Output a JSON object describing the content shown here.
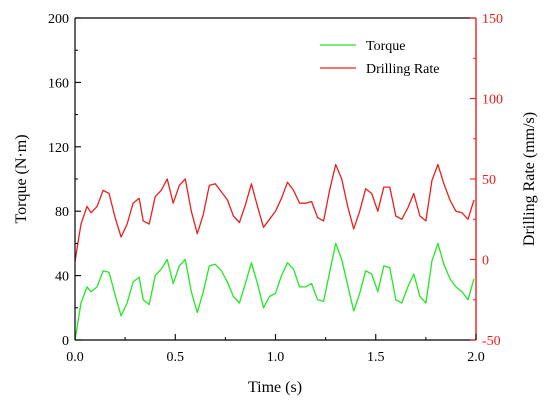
{
  "chart_data": {
    "type": "line",
    "xlabel": "Time (s)",
    "ylabel": "Torque (N·m)",
    "y2label": "Drilling Rate (mm/s)",
    "xlim": [
      0,
      2.0
    ],
    "ylim": [
      0,
      200
    ],
    "y2lim": [
      -50,
      150
    ],
    "xticks": [
      "0.0",
      "0.5",
      "1.0",
      "1.5",
      "2.0"
    ],
    "yticks": [
      "0",
      "40",
      "80",
      "120",
      "160",
      "200"
    ],
    "y2ticks": [
      "-50",
      "0",
      "50",
      "100",
      "150"
    ],
    "legend_position": "top-right",
    "grid": false,
    "colors": {
      "torque": "#22e822",
      "rate": "#e8201d",
      "right_axis": "#e8201d"
    },
    "series": [
      {
        "name": "Torque",
        "axis": "left",
        "color": "#22e822",
        "x": [
          0.0,
          0.03,
          0.06,
          0.08,
          0.11,
          0.14,
          0.17,
          0.2,
          0.23,
          0.26,
          0.29,
          0.32,
          0.34,
          0.37,
          0.4,
          0.43,
          0.46,
          0.49,
          0.52,
          0.55,
          0.58,
          0.61,
          0.64,
          0.67,
          0.7,
          0.73,
          0.76,
          0.79,
          0.82,
          0.85,
          0.88,
          0.91,
          0.94,
          0.97,
          1.0,
          1.03,
          1.06,
          1.09,
          1.12,
          1.15,
          1.18,
          1.21,
          1.24,
          1.27,
          1.3,
          1.33,
          1.36,
          1.39,
          1.42,
          1.45,
          1.48,
          1.51,
          1.54,
          1.57,
          1.6,
          1.63,
          1.66,
          1.69,
          1.72,
          1.75,
          1.78,
          1.81,
          1.84,
          1.87,
          1.9,
          1.93,
          1.96,
          1.99
        ],
        "values": [
          0,
          23,
          33,
          30,
          33,
          43,
          42,
          28,
          15,
          23,
          36,
          39,
          25,
          22,
          40,
          44,
          50,
          35,
          46,
          50,
          30,
          17,
          30,
          46,
          47,
          43,
          36,
          27,
          23,
          35,
          48,
          35,
          20,
          27,
          29,
          40,
          48,
          44,
          33,
          33,
          35,
          25,
          24,
          42,
          60,
          50,
          34,
          18,
          29,
          43,
          41,
          30,
          46,
          45,
          25,
          23,
          33,
          41,
          27,
          23,
          49,
          60,
          47,
          38,
          33,
          30,
          25,
          38
        ]
      },
      {
        "name": "Drilling Rate",
        "axis": "right",
        "color": "#e8201d",
        "x": [
          0.0,
          0.03,
          0.06,
          0.08,
          0.11,
          0.14,
          0.17,
          0.2,
          0.23,
          0.26,
          0.29,
          0.32,
          0.34,
          0.37,
          0.4,
          0.43,
          0.46,
          0.49,
          0.52,
          0.55,
          0.58,
          0.61,
          0.64,
          0.67,
          0.7,
          0.73,
          0.76,
          0.79,
          0.82,
          0.85,
          0.88,
          0.91,
          0.94,
          0.97,
          1.0,
          1.03,
          1.06,
          1.09,
          1.12,
          1.15,
          1.18,
          1.21,
          1.24,
          1.27,
          1.3,
          1.33,
          1.36,
          1.39,
          1.42,
          1.45,
          1.48,
          1.51,
          1.54,
          1.57,
          1.6,
          1.63,
          1.66,
          1.69,
          1.72,
          1.75,
          1.78,
          1.81,
          1.84,
          1.87,
          1.9,
          1.93,
          1.96,
          1.99
        ],
        "values": [
          -1,
          22,
          33,
          29,
          33,
          43,
          41,
          26,
          14,
          22,
          35,
          38,
          24,
          22,
          39,
          43,
          50,
          35,
          46,
          50,
          30,
          16,
          28,
          46,
          47,
          42,
          37,
          27,
          23,
          34,
          47,
          33,
          20,
          25,
          30,
          38,
          48,
          43,
          35,
          35,
          36,
          26,
          24,
          43,
          59,
          50,
          33,
          19,
          30,
          44,
          41,
          30,
          45,
          45,
          27,
          25,
          32,
          41,
          27,
          24,
          49,
          59,
          47,
          37,
          30,
          29,
          25,
          37
        ]
      }
    ]
  }
}
